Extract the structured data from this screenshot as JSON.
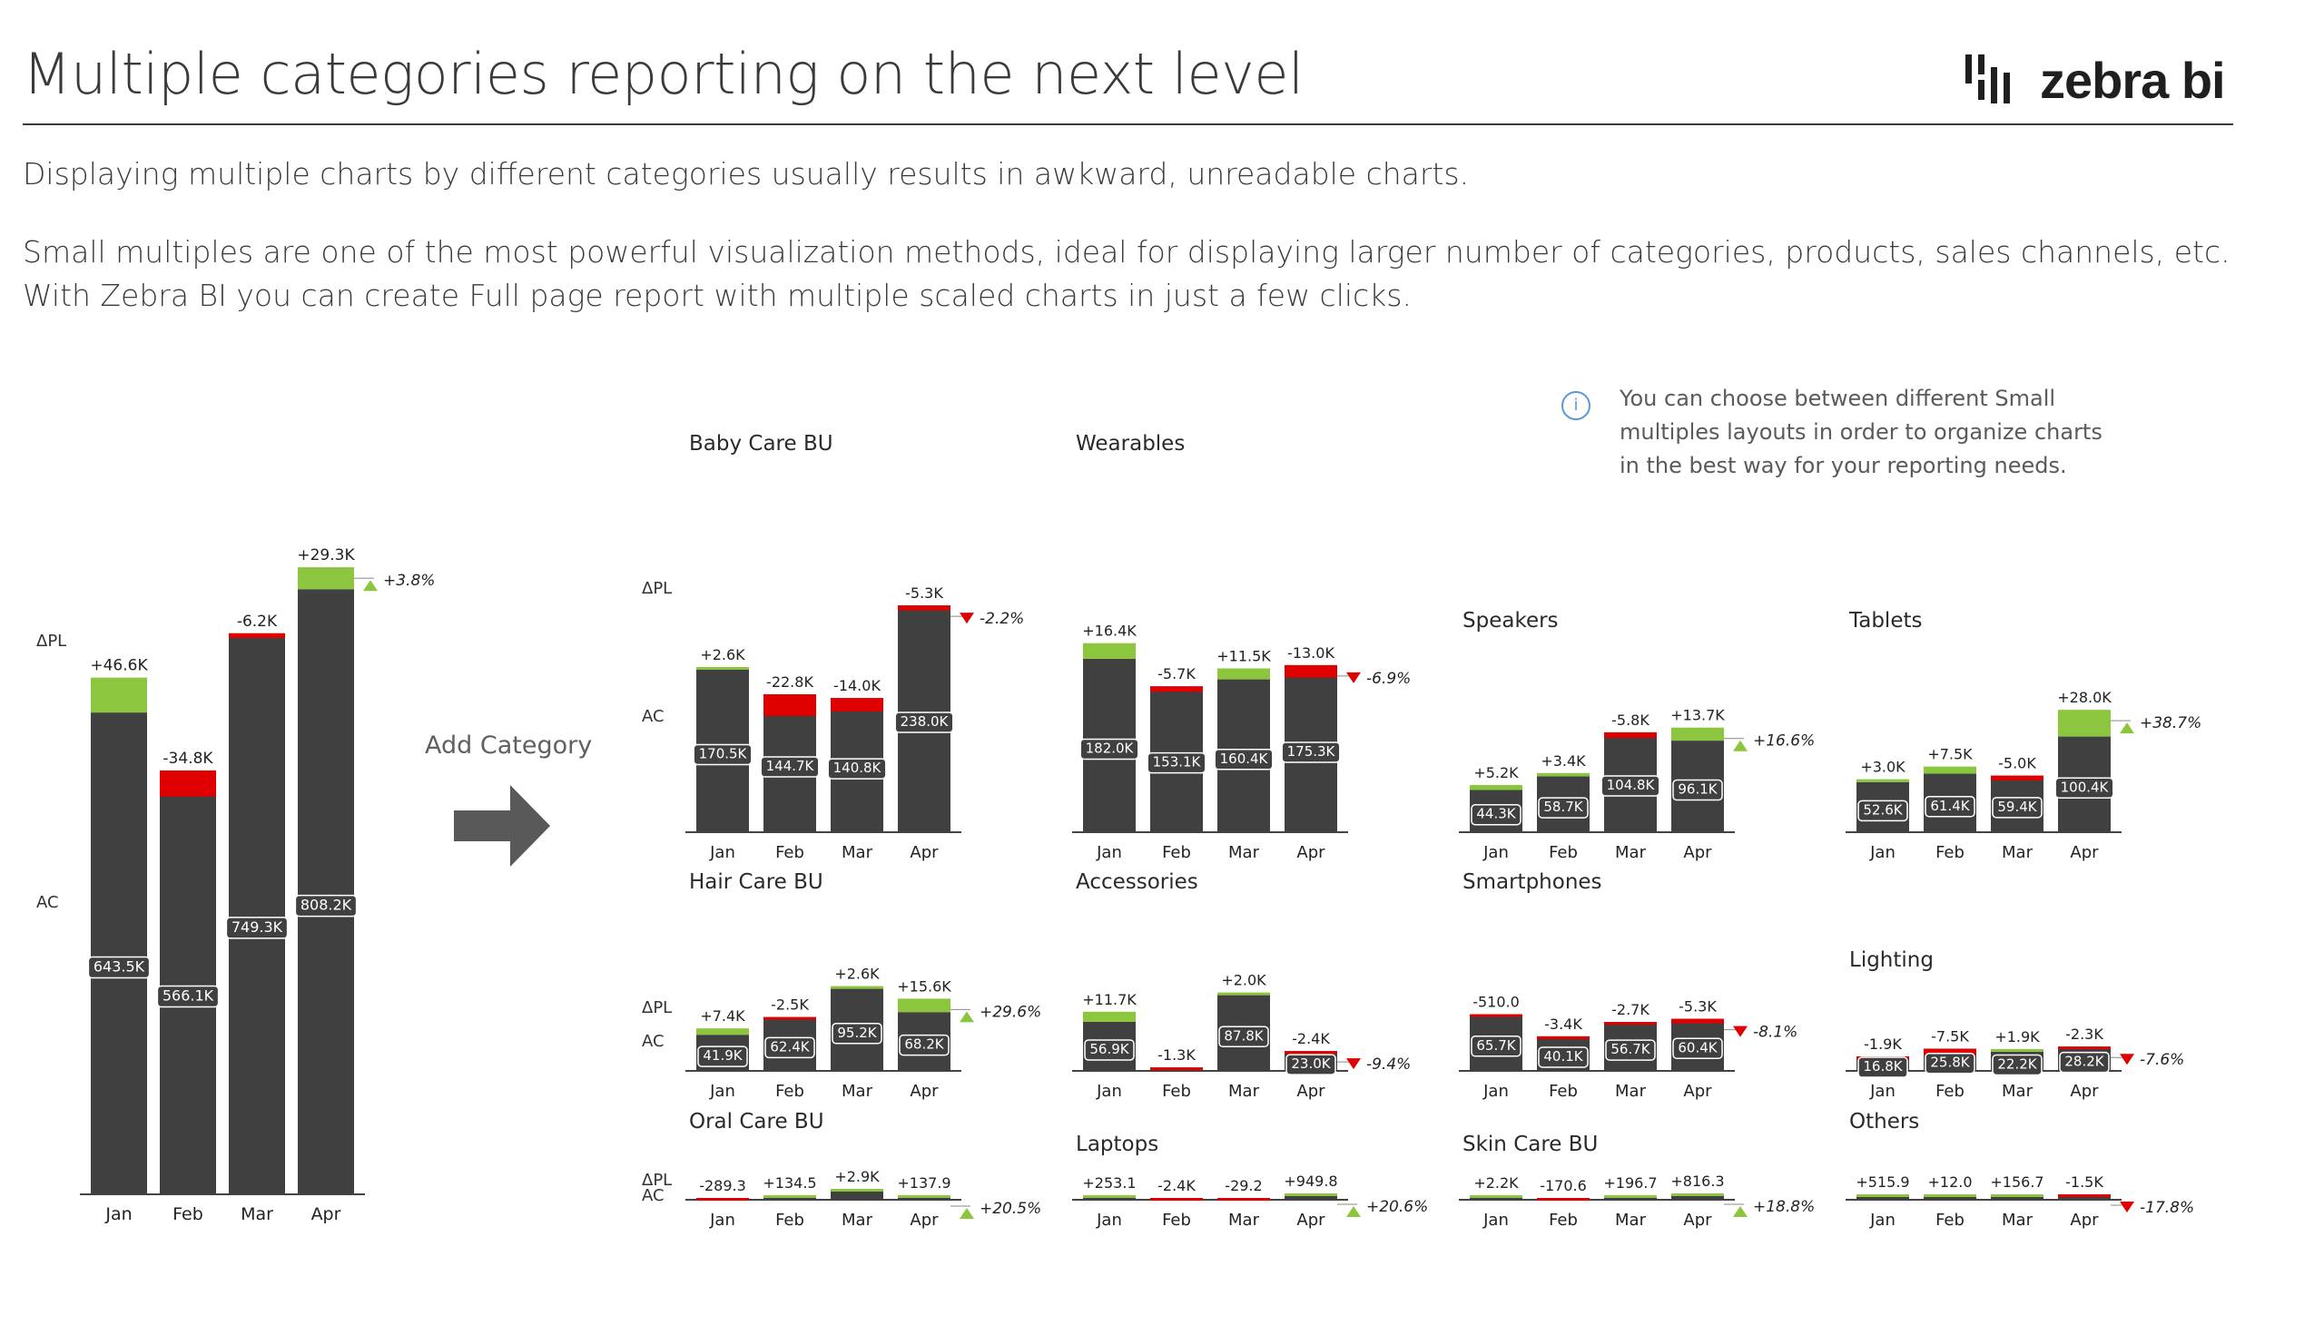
{
  "header": {
    "title": "Multiple categories reporting on the next level",
    "brand": "zebra bi"
  },
  "intro": {
    "line1": "Displaying multiple charts by different categories usually results in awkward, unreadable charts.",
    "line2": "Small multiples are one of the most powerful visualization methods, ideal for displaying larger number of categories, products, sales channels, etc.",
    "line3": "With Zebra BI you can create Full page report with multiple scaled charts in just a few clicks."
  },
  "info": {
    "icon": "info-icon",
    "line1": "You can choose between different  Small",
    "line2": "multiples layouts in order to organize charts",
    "line3": "in the best way for your reporting needs."
  },
  "transition": {
    "label": "Add Category",
    "icon": "arrow-right-icon"
  },
  "colors": {
    "bar": "#404040",
    "positive": "#8cc63f",
    "negative": "#e00000",
    "background": "#ffffff"
  },
  "chart_data": [
    {
      "type": "bar",
      "title": "",
      "row_labels": [
        "ΔPL",
        "AC"
      ],
      "categories": [
        "Jan",
        "Feb",
        "Mar",
        "Apr"
      ],
      "series": [
        {
          "name": "AC",
          "values": [
            643.5,
            566.1,
            749.3,
            808.2
          ],
          "labels": [
            "643.5K",
            "566.1K",
            "749.3K",
            "808.2K"
          ]
        },
        {
          "name": "ΔPL",
          "values": [
            46.6,
            -34.8,
            -6.2,
            29.3
          ],
          "labels": [
            "+46.6K",
            "-34.8K",
            "-6.2K",
            "+29.3K"
          ]
        }
      ],
      "total_delta": "+3.8%"
    },
    {
      "type": "bar",
      "title": "Baby Care BU",
      "row_labels": [
        "ΔPL",
        "AC"
      ],
      "categories": [
        "Jan",
        "Feb",
        "Mar",
        "Apr"
      ],
      "series": [
        {
          "name": "AC",
          "values": [
            170.5,
            144.7,
            140.8,
            238.0
          ],
          "labels": [
            "170.5K",
            "144.7K",
            "140.8K",
            "238.0K"
          ]
        },
        {
          "name": "ΔPL",
          "values": [
            2.6,
            -22.8,
            -14.0,
            -5.3
          ],
          "labels": [
            "+2.6K",
            "-22.8K",
            "-14.0K",
            "-5.3K"
          ]
        }
      ],
      "total_delta": "-2.2%"
    },
    {
      "type": "bar",
      "title": "Wearables",
      "categories": [
        "Jan",
        "Feb",
        "Mar",
        "Apr"
      ],
      "series": [
        {
          "name": "AC",
          "values": [
            182.0,
            153.1,
            160.4,
            175.3
          ],
          "labels": [
            "182.0K",
            "153.1K",
            "160.4K",
            "175.3K"
          ]
        },
        {
          "name": "ΔPL",
          "values": [
            16.4,
            -5.7,
            11.5,
            -13.0
          ],
          "labels": [
            "+16.4K",
            "-5.7K",
            "+11.5K",
            "-13.0K"
          ]
        }
      ],
      "total_delta": "-6.9%"
    },
    {
      "type": "bar",
      "title": "Speakers",
      "categories": [
        "Jan",
        "Feb",
        "Mar",
        "Apr"
      ],
      "series": [
        {
          "name": "AC",
          "values": [
            44.3,
            58.7,
            104.8,
            96.1
          ],
          "labels": [
            "44.3K",
            "58.7K",
            "104.8K",
            "96.1K"
          ]
        },
        {
          "name": "ΔPL",
          "values": [
            5.2,
            3.4,
            -5.8,
            13.7
          ],
          "labels": [
            "+5.2K",
            "+3.4K",
            "-5.8K",
            "+13.7K"
          ]
        }
      ],
      "total_delta": "+16.6%"
    },
    {
      "type": "bar",
      "title": "Tablets",
      "categories": [
        "Jan",
        "Feb",
        "Mar",
        "Apr"
      ],
      "series": [
        {
          "name": "AC",
          "values": [
            52.6,
            61.4,
            59.4,
            100.4
          ],
          "labels": [
            "52.6K",
            "61.4K",
            "59.4K",
            "100.4K"
          ]
        },
        {
          "name": "ΔPL",
          "values": [
            3.0,
            7.5,
            -5.0,
            28.0
          ],
          "labels": [
            "+3.0K",
            "+7.5K",
            "-5.0K",
            "+28.0K"
          ]
        }
      ],
      "total_delta": "+38.7%"
    },
    {
      "type": "bar",
      "title": "Hair Care BU",
      "row_labels": [
        "ΔPL",
        "AC"
      ],
      "categories": [
        "Jan",
        "Feb",
        "Mar",
        "Apr"
      ],
      "series": [
        {
          "name": "AC",
          "values": [
            41.9,
            62.4,
            95.2,
            68.2
          ],
          "labels": [
            "41.9K",
            "62.4K",
            "95.2K",
            "68.2K"
          ]
        },
        {
          "name": "ΔPL",
          "values": [
            7.4,
            -2.5,
            2.6,
            15.6
          ],
          "labels": [
            "+7.4K",
            "-2.5K",
            "+2.6K",
            "+15.6K"
          ]
        }
      ],
      "total_delta": "+29.6%"
    },
    {
      "type": "bar",
      "title": "Accessories",
      "categories": [
        "Jan",
        "Feb",
        "Mar",
        "Apr"
      ],
      "series": [
        {
          "name": "AC",
          "values": [
            56.9,
            4.0,
            87.8,
            23.0
          ],
          "labels": [
            "56.9K",
            "",
            "87.8K",
            "23.0K"
          ]
        },
        {
          "name": "ΔPL",
          "values": [
            11.7,
            -1.3,
            2.0,
            -2.4
          ],
          "labels": [
            "+11.7K",
            "-1.3K",
            "+2.0K",
            "-2.4K"
          ]
        }
      ],
      "total_delta": "-9.4%"
    },
    {
      "type": "bar",
      "title": "Smartphones",
      "categories": [
        "Jan",
        "Feb",
        "Mar",
        "Apr"
      ],
      "series": [
        {
          "name": "AC",
          "values": [
            65.7,
            40.1,
            56.7,
            60.4
          ],
          "labels": [
            "65.7K",
            "40.1K",
            "56.7K",
            "60.4K"
          ]
        },
        {
          "name": "ΔPL",
          "values": [
            -0.5,
            -3.4,
            -2.7,
            -5.3
          ],
          "labels": [
            "-510.0",
            "-3.4K",
            "-2.7K",
            "-5.3K"
          ]
        }
      ],
      "total_delta": "-8.1%"
    },
    {
      "type": "bar",
      "title": "Lighting",
      "categories": [
        "Jan",
        "Feb",
        "Mar",
        "Apr"
      ],
      "series": [
        {
          "name": "AC",
          "values": [
            16.8,
            25.8,
            22.2,
            28.2
          ],
          "labels": [
            "16.8K",
            "25.8K",
            "22.2K",
            "28.2K"
          ]
        },
        {
          "name": "ΔPL",
          "values": [
            -1.9,
            -7.5,
            1.9,
            -2.3
          ],
          "labels": [
            "-1.9K",
            "-7.5K",
            "+1.9K",
            "-2.3K"
          ]
        }
      ],
      "total_delta": "-7.6%"
    },
    {
      "type": "bar",
      "title": "Oral Care BU",
      "row_labels": [
        "ΔPL",
        "AC"
      ],
      "categories": [
        "Jan",
        "Feb",
        "Mar",
        "Apr"
      ],
      "series": [
        {
          "name": "AC",
          "values": [
            2.0,
            2.0,
            9.0,
            2.0
          ],
          "labels": [
            "",
            "",
            "",
            ""
          ]
        },
        {
          "name": "ΔPL",
          "values": [
            -0.29,
            0.13,
            2.9,
            0.14
          ],
          "labels": [
            "-289.3",
            "+134.5",
            "+2.9K",
            "+137.9"
          ]
        }
      ],
      "total_delta": "+20.5%"
    },
    {
      "type": "bar",
      "title": "Laptops",
      "categories": [
        "Jan",
        "Feb",
        "Mar",
        "Apr"
      ],
      "series": [
        {
          "name": "AC",
          "values": [
            2.0,
            2.0,
            2.0,
            4.0
          ],
          "labels": [
            "",
            "",
            "",
            ""
          ]
        },
        {
          "name": "ΔPL",
          "values": [
            0.25,
            -2.4,
            -0.03,
            0.95
          ],
          "labels": [
            "+253.1",
            "-2.4K",
            "-29.2",
            "+949.8"
          ]
        }
      ],
      "total_delta": "+20.6%"
    },
    {
      "type": "bar",
      "title": "Skin Care BU",
      "categories": [
        "Jan",
        "Feb",
        "Mar",
        "Apr"
      ],
      "series": [
        {
          "name": "AC",
          "values": [
            2.0,
            2.0,
            2.0,
            4.0
          ],
          "labels": [
            "",
            "",
            "",
            ""
          ]
        },
        {
          "name": "ΔPL",
          "values": [
            2.2,
            -0.17,
            0.2,
            0.82
          ],
          "labels": [
            "+2.2K",
            "-170.6",
            "+196.7",
            "+816.3"
          ]
        }
      ],
      "total_delta": "+18.8%"
    },
    {
      "type": "bar",
      "title": "Others",
      "categories": [
        "Jan",
        "Feb",
        "Mar",
        "Apr"
      ],
      "series": [
        {
          "name": "AC",
          "values": [
            3.0,
            3.0,
            3.0,
            6.0
          ],
          "labels": [
            "",
            "",
            "",
            ""
          ]
        },
        {
          "name": "ΔPL",
          "values": [
            0.52,
            0.01,
            0.16,
            -1.5
          ],
          "labels": [
            "+515.9",
            "+12.0",
            "+156.7",
            "-1.5K"
          ]
        }
      ],
      "total_delta": "-17.8%"
    }
  ]
}
